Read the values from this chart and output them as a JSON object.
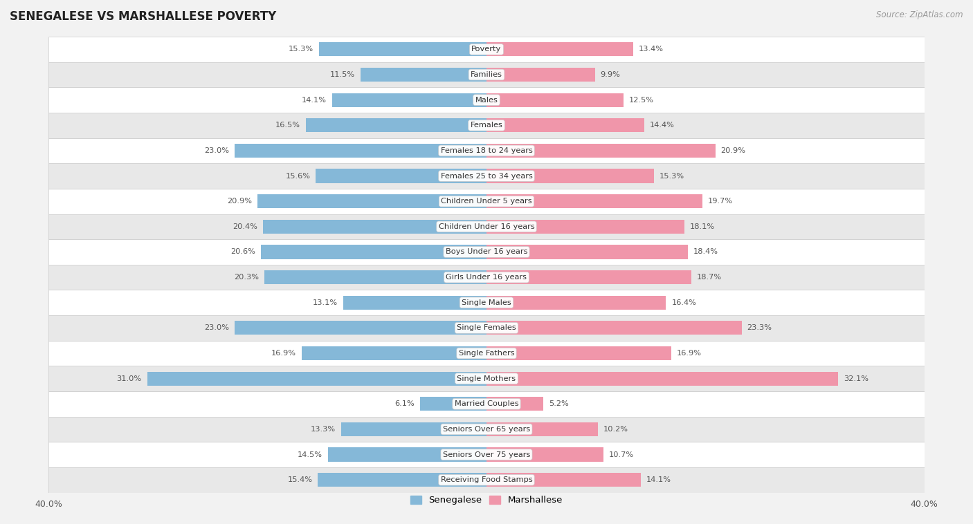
{
  "title": "SENEGALESE VS MARSHALLESE POVERTY",
  "source": "Source: ZipAtlas.com",
  "categories": [
    "Poverty",
    "Families",
    "Males",
    "Females",
    "Females 18 to 24 years",
    "Females 25 to 34 years",
    "Children Under 5 years",
    "Children Under 16 years",
    "Boys Under 16 years",
    "Girls Under 16 years",
    "Single Males",
    "Single Females",
    "Single Fathers",
    "Single Mothers",
    "Married Couples",
    "Seniors Over 65 years",
    "Seniors Over 75 years",
    "Receiving Food Stamps"
  ],
  "senegalese": [
    15.3,
    11.5,
    14.1,
    16.5,
    23.0,
    15.6,
    20.9,
    20.4,
    20.6,
    20.3,
    13.1,
    23.0,
    16.9,
    31.0,
    6.1,
    13.3,
    14.5,
    15.4
  ],
  "marshallese": [
    13.4,
    9.9,
    12.5,
    14.4,
    20.9,
    15.3,
    19.7,
    18.1,
    18.4,
    18.7,
    16.4,
    23.3,
    16.9,
    32.1,
    5.2,
    10.2,
    10.7,
    14.1
  ],
  "senegalese_color": "#85b8d8",
  "marshallese_color": "#f096aa",
  "bg_main": "#f2f2f2",
  "row_color_light": "#ffffff",
  "row_color_dark": "#e8e8e8",
  "xlim": 40.0,
  "legend_labels": [
    "Senegalese",
    "Marshallese"
  ]
}
